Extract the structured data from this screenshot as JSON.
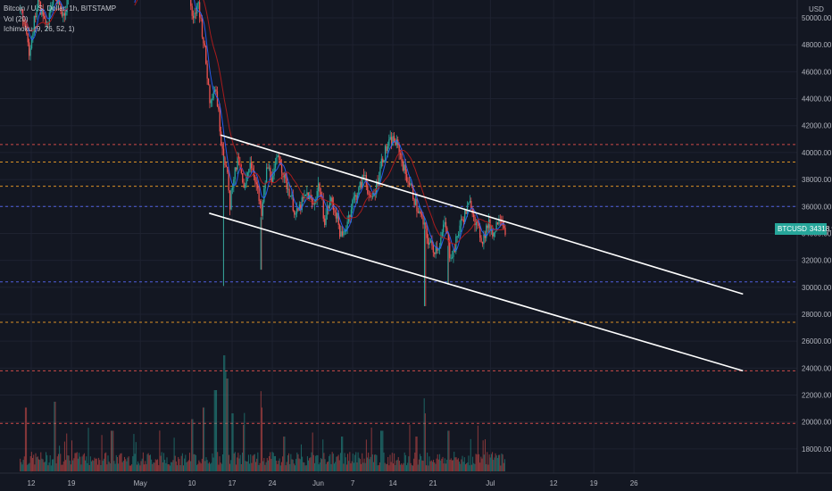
{
  "legend": {
    "title": "Bitcoin / U.S. Dollar, 1h, BITSTAMP",
    "vol": "Vol (20)",
    "ichimoku": "Ichimoku (9, 26, 52, 1)"
  },
  "last_price": {
    "symbol": "BTCUSD",
    "value": "34318.95"
  },
  "colors": {
    "background": "#131722",
    "up": "#26a69a",
    "down": "#ef5350",
    "trendline": "#ffffff",
    "level_red": "#ef5350",
    "level_orange": "#ffa726",
    "level_blue": "#5b6cff",
    "conversion_line": "#2962ff",
    "base_line": "#b71c1c"
  },
  "chart_data": {
    "type": "candlestick",
    "currency_label": "USD",
    "y_ticks": [
      "50000.00",
      "48000.00",
      "46000.00",
      "44000.00",
      "42000.00",
      "40000.00",
      "38000.00",
      "36000.00",
      "34000.00",
      "32000.00",
      "30000.00",
      "28000.00",
      "26000.00",
      "24000.00",
      "22000.00",
      "20000.00",
      "18000.00"
    ],
    "y_tick_values": [
      50000,
      48000,
      46000,
      44000,
      42000,
      40000,
      38000,
      36000,
      34000,
      32000,
      30000,
      28000,
      26000,
      24000,
      22000,
      20000,
      18000
    ],
    "x_ticks": [
      {
        "label": "12",
        "day": 12
      },
      {
        "label": "19",
        "day": 19
      },
      {
        "label": "May",
        "day": 31
      },
      {
        "label": "10",
        "day": 40
      },
      {
        "label": "17",
        "day": 47
      },
      {
        "label": "24",
        "day": 54
      },
      {
        "label": "Jun",
        "day": 62
      },
      {
        "label": "7",
        "day": 68
      },
      {
        "label": "14",
        "day": 75
      },
      {
        "label": "21",
        "day": 82
      },
      {
        "label": "Jul",
        "day": 92
      },
      {
        "label": "12",
        "day": 103
      },
      {
        "label": "19",
        "day": 110
      },
      {
        "label": "26",
        "day": 117
      }
    ],
    "horizontal_levels": [
      {
        "price": 40600,
        "color": "red"
      },
      {
        "price": 39300,
        "color": "orange"
      },
      {
        "price": 37500,
        "color": "orange"
      },
      {
        "price": 36000,
        "color": "blue"
      },
      {
        "price": 30400,
        "color": "blue"
      },
      {
        "price": 27400,
        "color": "orange"
      },
      {
        "price": 23800,
        "color": "red"
      },
      {
        "price": 19900,
        "color": "red"
      }
    ],
    "trendlines": [
      {
        "from": {
          "day": 45,
          "price": 41300
        },
        "to": {
          "day": 136,
          "price": 29500
        }
      },
      {
        "from": {
          "day": 43,
          "price": 35500
        },
        "to": {
          "day": 136,
          "price": 23800
        }
      }
    ],
    "price_path": [
      [
        10,
        51000
      ],
      [
        11.5,
        47500
      ],
      [
        13,
        51200
      ],
      [
        14.5,
        49500
      ],
      [
        16,
        51400
      ],
      [
        17.5,
        50200
      ],
      [
        18.5,
        51800
      ],
      [
        30,
        53500
      ],
      [
        34,
        52600
      ],
      [
        39,
        54000
      ],
      [
        40,
        49500
      ],
      [
        41,
        51200
      ],
      [
        42,
        48000
      ],
      [
        43,
        44000
      ],
      [
        44,
        45000
      ],
      [
        45,
        41000
      ],
      [
        46,
        38500
      ],
      [
        46.5,
        36000
      ],
      [
        47,
        38000
      ],
      [
        48,
        39500
      ],
      [
        49,
        37000
      ],
      [
        50,
        39500
      ],
      [
        51,
        38000
      ],
      [
        52,
        35200
      ],
      [
        52.5,
        37200
      ],
      [
        53,
        39000
      ],
      [
        54,
        38000
      ],
      [
        55,
        40000
      ],
      [
        56,
        38000
      ],
      [
        57,
        37000
      ],
      [
        58,
        35300
      ],
      [
        59,
        36200
      ],
      [
        60,
        37000
      ],
      [
        61,
        36000
      ],
      [
        62,
        37700
      ],
      [
        63,
        35000
      ],
      [
        64,
        36500
      ],
      [
        65,
        35500
      ],
      [
        66,
        33500
      ],
      [
        67,
        35000
      ],
      [
        68,
        36500
      ],
      [
        69,
        37200
      ],
      [
        70,
        38500
      ],
      [
        71,
        36200
      ],
      [
        72,
        37500
      ],
      [
        73,
        39500
      ],
      [
        74,
        40500
      ],
      [
        75,
        41000
      ],
      [
        76,
        40200
      ],
      [
        77,
        38500
      ],
      [
        78,
        37500
      ],
      [
        79,
        36000
      ],
      [
        80,
        35000
      ],
      [
        81,
        33500
      ],
      [
        82,
        32800
      ],
      [
        83,
        33200
      ],
      [
        84,
        34800
      ],
      [
        84.8,
        32500
      ],
      [
        85.5,
        32600
      ],
      [
        86.5,
        34500
      ],
      [
        87.5,
        35500
      ],
      [
        88.5,
        36300
      ],
      [
        89.5,
        34500
      ],
      [
        90.5,
        33500
      ],
      [
        91.5,
        34700
      ],
      [
        92.5,
        34000
      ],
      [
        93.5,
        35500
      ],
      [
        94.5,
        34300
      ]
    ],
    "wicks": [
      {
        "day": 45.5,
        "low": 30100
      },
      {
        "day": 52,
        "low": 31300
      },
      {
        "day": 80.5,
        "low": 28600
      },
      {
        "day": 84.6,
        "low": 30200
      }
    ],
    "volume_spikes": [
      {
        "day": 11,
        "value": 0.55
      },
      {
        "day": 16,
        "value": 0.6
      },
      {
        "day": 26,
        "value": 0.35
      },
      {
        "day": 40,
        "value": 0.45
      },
      {
        "day": 42,
        "value": 0.55
      },
      {
        "day": 44,
        "value": 0.7
      },
      {
        "day": 45.5,
        "value": 1.0
      },
      {
        "day": 46,
        "value": 0.8
      },
      {
        "day": 47,
        "value": 0.5
      },
      {
        "day": 49,
        "value": 0.4
      },
      {
        "day": 52,
        "value": 0.55
      },
      {
        "day": 56,
        "value": 0.3
      },
      {
        "day": 66,
        "value": 0.3
      },
      {
        "day": 73,
        "value": 0.35
      },
      {
        "day": 79,
        "value": 0.3
      },
      {
        "day": 80.5,
        "value": 0.5
      },
      {
        "day": 84.6,
        "value": 0.35
      }
    ]
  }
}
